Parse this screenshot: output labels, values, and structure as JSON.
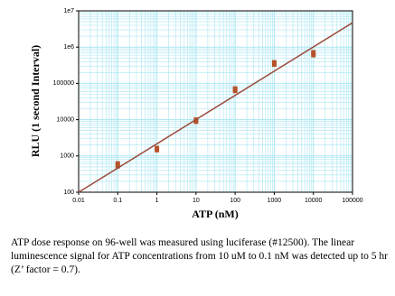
{
  "chart_data": {
    "type": "scatter",
    "xlabel": "ATP (nM)",
    "ylabel": "RLU (1 second Interval)",
    "xscale": "log",
    "yscale": "log",
    "grid": true,
    "grid_color": "#a9e6f2",
    "xlim": [
      0.01,
      100000
    ],
    "xticks": [
      0.01,
      0.1,
      1,
      10,
      100,
      1000,
      10000,
      100000
    ],
    "ylim": [
      100,
      10000000
    ],
    "yticks": [
      100,
      1000,
      10000,
      100000,
      {
        "value": 1000000,
        "label": "1e6"
      },
      {
        "value": 10000000,
        "label": "1e7"
      }
    ],
    "series": [
      {
        "color": "#b5532a",
        "x": [
          0.1,
          0.1,
          1,
          1,
          10,
          10,
          100,
          100,
          1000,
          1000,
          10000,
          10000
        ],
        "values": [
          520,
          620,
          1450,
          1650,
          8800,
          10000,
          62000,
          72000,
          330000,
          380000,
          600000,
          720000
        ]
      },
      {
        "color": "#9a4a3a",
        "line": true,
        "x": [
          0.01,
          100000
        ],
        "values": [
          100,
          4700000
        ]
      }
    ]
  },
  "caption": "ATP dose response on 96-well was measured using luciferase (#12500). The linear luminescence signal for ATP concentrations from 10 uM to 0.1 nM was detected up to 5 hr (Z’ factor = 0.7)."
}
